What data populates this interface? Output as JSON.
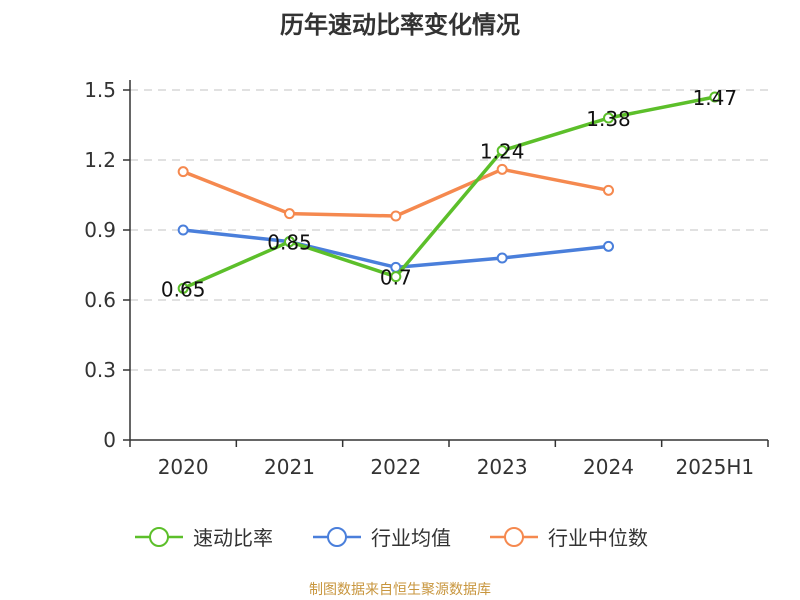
{
  "chart_data": {
    "type": "line",
    "title": "历年速动比率变化情况",
    "categories": [
      "2020",
      "2021",
      "2022",
      "2023",
      "2024",
      "2025H1"
    ],
    "ylim": [
      0,
      1.5
    ],
    "yticks": [
      "0",
      "0.3",
      "0.6",
      "0.9",
      "1.2",
      "1.5"
    ],
    "ytick_values": [
      0,
      0.3,
      0.6,
      0.9,
      1.2,
      1.5
    ],
    "grid": true,
    "legend_position": "bottom",
    "series": [
      {
        "name": "速动比率",
        "color": "#5cbf2a",
        "values": [
          0.65,
          0.85,
          0.7,
          1.24,
          1.38,
          1.47
        ],
        "labels": [
          "0.65",
          "0.85",
          "0.7",
          "1.24",
          "1.38",
          "1.47"
        ]
      },
      {
        "name": "行业均值",
        "color": "#4a7fdb",
        "values": [
          0.9,
          0.85,
          0.74,
          0.78,
          0.83,
          null
        ]
      },
      {
        "name": "行业中位数",
        "color": "#f5894f",
        "values": [
          1.15,
          0.97,
          0.96,
          1.16,
          1.07,
          null
        ]
      }
    ],
    "source": "制图数据来自恒生聚源数据库"
  }
}
